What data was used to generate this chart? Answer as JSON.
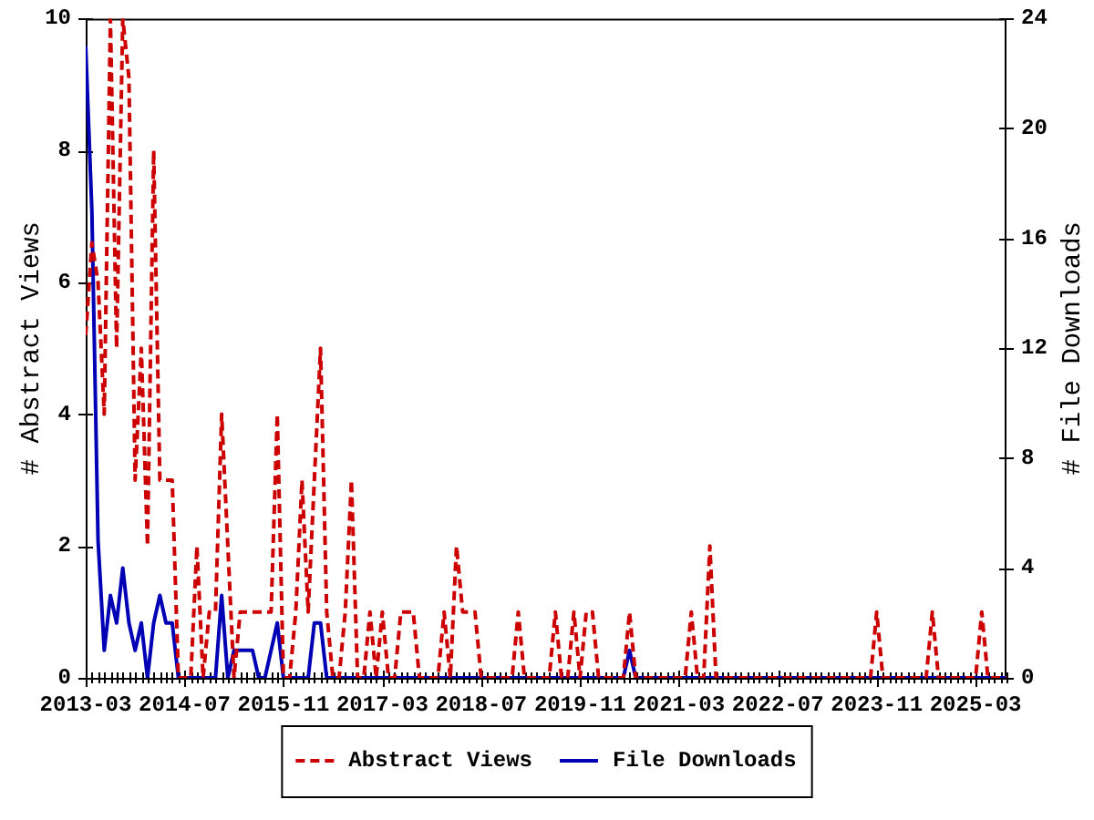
{
  "chart_data": {
    "type": "line",
    "ylabel": "# Abstract Views",
    "y2label": "# File Downloads",
    "x": [
      "2013-03",
      "2013-04",
      "2013-05",
      "2013-06",
      "2013-07",
      "2013-08",
      "2013-09",
      "2013-10",
      "2013-11",
      "2013-12",
      "2014-01",
      "2014-02",
      "2014-03",
      "2014-04",
      "2014-05",
      "2014-06",
      "2014-07",
      "2014-08",
      "2014-09",
      "2014-10",
      "2014-11",
      "2014-12",
      "2015-01",
      "2015-02",
      "2015-03",
      "2015-04",
      "2015-05",
      "2015-06",
      "2015-07",
      "2015-08",
      "2015-09",
      "2015-10",
      "2015-11",
      "2015-12",
      "2016-01",
      "2016-02",
      "2016-03",
      "2016-04",
      "2016-05",
      "2016-06",
      "2016-07",
      "2016-08",
      "2016-09",
      "2016-10",
      "2016-11",
      "2016-12",
      "2017-01",
      "2017-02",
      "2017-03",
      "2017-04",
      "2017-05",
      "2017-06",
      "2017-07",
      "2017-08",
      "2017-09",
      "2017-10",
      "2017-11",
      "2017-12",
      "2018-01",
      "2018-02",
      "2018-03",
      "2018-04",
      "2018-05",
      "2018-06",
      "2018-07",
      "2018-08",
      "2018-09",
      "2018-10",
      "2018-11",
      "2018-12",
      "2019-01",
      "2019-02",
      "2019-03",
      "2019-04",
      "2019-05",
      "2019-06",
      "2019-07",
      "2019-08",
      "2019-09",
      "2019-10",
      "2019-11",
      "2019-12",
      "2020-01",
      "2020-02",
      "2020-03",
      "2020-04",
      "2020-05",
      "2020-06",
      "2020-07",
      "2020-08",
      "2020-09",
      "2020-10",
      "2020-11",
      "2020-12",
      "2021-01",
      "2021-02",
      "2021-03",
      "2021-04",
      "2021-05",
      "2021-06",
      "2021-07",
      "2021-08",
      "2021-09",
      "2021-10",
      "2021-11",
      "2021-12",
      "2022-01",
      "2022-02",
      "2022-03",
      "2022-04",
      "2022-05",
      "2022-06",
      "2022-07",
      "2022-08",
      "2022-09",
      "2022-10",
      "2022-11",
      "2022-12",
      "2023-01",
      "2023-02",
      "2023-03",
      "2023-04",
      "2023-05",
      "2023-06",
      "2023-07",
      "2023-08",
      "2023-09",
      "2023-10",
      "2023-11",
      "2023-12",
      "2024-01",
      "2024-02",
      "2024-03",
      "2024-04",
      "2024-05",
      "2024-06",
      "2024-07",
      "2024-08",
      "2024-09",
      "2024-10",
      "2024-11",
      "2024-12",
      "2025-01",
      "2025-02",
      "2025-03",
      "2025-04",
      "2025-05",
      "2025-06",
      "2025-07",
      "2025-08"
    ],
    "series": [
      {
        "name": "Abstract Views",
        "color": "#cc0000",
        "line_style": "dashed",
        "values": [
          5.2,
          6.6,
          6,
          4,
          10,
          5,
          10,
          9.1,
          3,
          5,
          2,
          8,
          3,
          3,
          3,
          0,
          0,
          0,
          2,
          0,
          1,
          1,
          4,
          2,
          0,
          1,
          1,
          1,
          1,
          1,
          1,
          4,
          0,
          0,
          1,
          3,
          1,
          3,
          5,
          1,
          0,
          0,
          1,
          3,
          0,
          0,
          1,
          0,
          1,
          0,
          0,
          1,
          1,
          1,
          0,
          0,
          0,
          0,
          1,
          0,
          2,
          1,
          1,
          1,
          0,
          0,
          0,
          0,
          0,
          0,
          1,
          0,
          0,
          0,
          0,
          0,
          1,
          0,
          0,
          1,
          0,
          1,
          1,
          0,
          0,
          0,
          0,
          0,
          1,
          0,
          0,
          0,
          0,
          0,
          0,
          0,
          0,
          0,
          1,
          0,
          0,
          2,
          0,
          0,
          0,
          0,
          0,
          0,
          0,
          0,
          0,
          0,
          0,
          0,
          0,
          0,
          0,
          0,
          0,
          0,
          0,
          0,
          0,
          0,
          0,
          0,
          0,
          0,
          1,
          0,
          0,
          0,
          0,
          0,
          0,
          0,
          0,
          1,
          0,
          0,
          0,
          0,
          0,
          0,
          0,
          1,
          0,
          0,
          0,
          0
        ]
      },
      {
        "name": "File Downloads",
        "color": "#0000b4",
        "line_style": "solid",
        "axis": "y2",
        "values": [
          23,
          17,
          5,
          1,
          3,
          2,
          4,
          2,
          1,
          2,
          0,
          2,
          3,
          2,
          2,
          0,
          0,
          0,
          0,
          0,
          0,
          0,
          3,
          0,
          1,
          1,
          1,
          1,
          0,
          0,
          1,
          2,
          0,
          0,
          0,
          0,
          0,
          2,
          2,
          0,
          0,
          0,
          0,
          0,
          0,
          0,
          0,
          0,
          0,
          0,
          0,
          0,
          0,
          0,
          0,
          0,
          0,
          0,
          0,
          0,
          0,
          0,
          0,
          0,
          0,
          0,
          0,
          0,
          0,
          0,
          0,
          0,
          0,
          0,
          0,
          0,
          0,
          0,
          0,
          0,
          0,
          0,
          0,
          0,
          0,
          0,
          0,
          0,
          1,
          0,
          0,
          0,
          0,
          0,
          0,
          0,
          0,
          0,
          0,
          0,
          0,
          0,
          0,
          0,
          0,
          0,
          0,
          0,
          0,
          0,
          0,
          0,
          0,
          0,
          0,
          0,
          0,
          0,
          0,
          0,
          0,
          0,
          0,
          0,
          0,
          0,
          0,
          0,
          0,
          0,
          0,
          0,
          0,
          0,
          0,
          0,
          0,
          0,
          0,
          0,
          0,
          0,
          0,
          0,
          0,
          0,
          0,
          0,
          0,
          0
        ]
      }
    ],
    "xlim": [
      "2013-03",
      "2025-08"
    ],
    "xticks": [
      "2013-03",
      {
        "value": "2013-04",
        "label": null
      },
      {
        "value": "2013-05",
        "label": null
      },
      {
        "value": "2013-06",
        "label": null
      },
      {
        "value": "2013-07",
        "label": null
      },
      {
        "value": "2013-08",
        "label": null
      },
      {
        "value": "2013-09",
        "label": null
      },
      {
        "value": "2013-10",
        "label": null
      },
      {
        "value": "2013-11",
        "label": null
      },
      {
        "value": "2013-12",
        "label": null
      },
      {
        "value": "2014-01",
        "label": null
      },
      {
        "value": "2014-02",
        "label": null
      },
      {
        "value": "2014-03",
        "label": null
      },
      {
        "value": "2014-04",
        "label": null
      },
      {
        "value": "2014-05",
        "label": null
      },
      {
        "value": "2014-06",
        "label": null
      },
      "2014-07",
      {
        "value": "2014-08",
        "label": null
      },
      {
        "value": "2014-09",
        "label": null
      },
      {
        "value": "2014-10",
        "label": null
      },
      {
        "value": "2014-11",
        "label": null
      },
      {
        "value": "2014-12",
        "label": null
      },
      {
        "value": "2015-01",
        "label": null
      },
      {
        "value": "2015-02",
        "label": null
      },
      {
        "value": "2015-03",
        "label": null
      },
      {
        "value": "2015-04",
        "label": null
      },
      {
        "value": "2015-05",
        "label": null
      },
      {
        "value": "2015-06",
        "label": null
      },
      {
        "value": "2015-07",
        "label": null
      },
      {
        "value": "2015-08",
        "label": null
      },
      {
        "value": "2015-09",
        "label": null
      },
      {
        "value": "2015-10",
        "label": null
      },
      "2015-11",
      {
        "value": "2015-12",
        "label": null
      },
      {
        "value": "2016-01",
        "label": null
      },
      {
        "value": "2016-02",
        "label": null
      },
      {
        "value": "2016-03",
        "label": null
      },
      {
        "value": "2016-04",
        "label": null
      },
      {
        "value": "2016-05",
        "label": null
      },
      {
        "value": "2016-06",
        "label": null
      },
      {
        "value": "2016-07",
        "label": null
      },
      {
        "value": "2016-08",
        "label": null
      },
      {
        "value": "2016-09",
        "label": null
      },
      {
        "value": "2016-10",
        "label": null
      },
      {
        "value": "2016-11",
        "label": null
      },
      {
        "value": "2016-12",
        "label": null
      },
      {
        "value": "2017-01",
        "label": null
      },
      {
        "value": "2017-02",
        "label": null
      },
      "2017-03",
      {
        "value": "2017-04",
        "label": null
      },
      {
        "value": "2017-05",
        "label": null
      },
      {
        "value": "2017-06",
        "label": null
      },
      {
        "value": "2017-07",
        "label": null
      },
      {
        "value": "2017-08",
        "label": null
      },
      {
        "value": "2017-09",
        "label": null
      },
      {
        "value": "2017-10",
        "label": null
      },
      {
        "value": "2017-11",
        "label": null
      },
      {
        "value": "2017-12",
        "label": null
      },
      {
        "value": "2018-01",
        "label": null
      },
      {
        "value": "2018-02",
        "label": null
      },
      {
        "value": "2018-03",
        "label": null
      },
      {
        "value": "2018-04",
        "label": null
      },
      {
        "value": "2018-05",
        "label": null
      },
      {
        "value": "2018-06",
        "label": null
      },
      "2018-07",
      {
        "value": "2018-08",
        "label": null
      },
      {
        "value": "2018-09",
        "label": null
      },
      {
        "value": "2018-10",
        "label": null
      },
      {
        "value": "2018-11",
        "label": null
      },
      {
        "value": "2018-12",
        "label": null
      },
      {
        "value": "2019-01",
        "label": null
      },
      {
        "value": "2019-02",
        "label": null
      },
      {
        "value": "2019-03",
        "label": null
      },
      {
        "value": "2019-04",
        "label": null
      },
      {
        "value": "2019-05",
        "label": null
      },
      {
        "value": "2019-06",
        "label": null
      },
      {
        "value": "2019-07",
        "label": null
      },
      {
        "value": "2019-08",
        "label": null
      },
      {
        "value": "2019-09",
        "label": null
      },
      {
        "value": "2019-10",
        "label": null
      },
      "2019-11",
      {
        "value": "2019-12",
        "label": null
      },
      {
        "value": "2020-01",
        "label": null
      },
      {
        "value": "2020-02",
        "label": null
      },
      {
        "value": "2020-03",
        "label": null
      },
      {
        "value": "2020-04",
        "label": null
      },
      {
        "value": "2020-05",
        "label": null
      },
      {
        "value": "2020-06",
        "label": null
      },
      {
        "value": "2020-07",
        "label": null
      },
      {
        "value": "2020-08",
        "label": null
      },
      {
        "value": "2020-09",
        "label": null
      },
      {
        "value": "2020-10",
        "label": null
      },
      {
        "value": "2020-11",
        "label": null
      },
      {
        "value": "2020-12",
        "label": null
      },
      {
        "value": "2021-01",
        "label": null
      },
      {
        "value": "2021-02",
        "label": null
      },
      "2021-03",
      {
        "value": "2021-04",
        "label": null
      },
      {
        "value": "2021-05",
        "label": null
      },
      {
        "value": "2021-06",
        "label": null
      },
      {
        "value": "2021-07",
        "label": null
      },
      {
        "value": "2021-08",
        "label": null
      },
      {
        "value": "2021-09",
        "label": null
      },
      {
        "value": "2021-10",
        "label": null
      },
      {
        "value": "2021-11",
        "label": null
      },
      {
        "value": "2021-12",
        "label": null
      },
      {
        "value": "2022-01",
        "label": null
      },
      {
        "value": "2022-02",
        "label": null
      },
      {
        "value": "2022-03",
        "label": null
      },
      {
        "value": "2022-04",
        "label": null
      },
      {
        "value": "2022-05",
        "label": null
      },
      {
        "value": "2022-06",
        "label": null
      },
      "2022-07",
      {
        "value": "2022-08",
        "label": null
      },
      {
        "value": "2022-09",
        "label": null
      },
      {
        "value": "2022-10",
        "label": null
      },
      {
        "value": "2022-11",
        "label": null
      },
      {
        "value": "2022-12",
        "label": null
      },
      {
        "value": "2023-01",
        "label": null
      },
      {
        "value": "2023-02",
        "label": null
      },
      {
        "value": "2023-03",
        "label": null
      },
      {
        "value": "2023-04",
        "label": null
      },
      {
        "value": "2023-05",
        "label": null
      },
      {
        "value": "2023-06",
        "label": null
      },
      {
        "value": "2023-07",
        "label": null
      },
      {
        "value": "2023-08",
        "label": null
      },
      {
        "value": "2023-09",
        "label": null
      },
      {
        "value": "2023-10",
        "label": null
      },
      "2023-11",
      {
        "value": "2023-12",
        "label": null
      },
      {
        "value": "2024-01",
        "label": null
      },
      {
        "value": "2024-02",
        "label": null
      },
      {
        "value": "2024-03",
        "label": null
      },
      {
        "value": "2024-04",
        "label": null
      },
      {
        "value": "2024-05",
        "label": null
      },
      {
        "value": "2024-06",
        "label": null
      },
      {
        "value": "2024-07",
        "label": null
      },
      {
        "value": "2024-08",
        "label": null
      },
      {
        "value": "2024-09",
        "label": null
      },
      {
        "value": "2024-10",
        "label": null
      },
      {
        "value": "2024-11",
        "label": null
      },
      {
        "value": "2024-12",
        "label": null
      },
      {
        "value": "2025-01",
        "label": null
      },
      {
        "value": "2025-02",
        "label": null
      },
      "2025-03",
      {
        "value": "2025-04",
        "label": null
      },
      {
        "value": "2025-05",
        "label": null
      },
      {
        "value": "2025-06",
        "label": null
      },
      {
        "value": "2025-07",
        "label": null
      },
      {
        "value": "2025-08",
        "label": null
      }
    ],
    "ylim": [
      0,
      10
    ],
    "yticks": [
      0,
      2,
      4,
      6,
      8,
      10
    ],
    "y2lim": [
      0,
      24
    ],
    "y2ticks": [
      0,
      4,
      8,
      12,
      16,
      20,
      24
    ],
    "marker": "none",
    "legend": "bottom"
  }
}
